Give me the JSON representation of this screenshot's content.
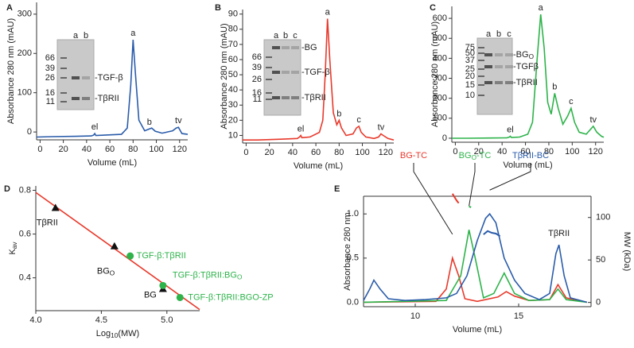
{
  "chart_data": [
    {
      "type": "line",
      "label": "A",
      "ylabel": "Absorbance 280 nm (mAU)",
      "xlabel": "Volume (mL)",
      "xlim": [
        -3,
        127
      ],
      "ylim": [
        -20,
        330
      ],
      "xticks": [
        0,
        20,
        40,
        60,
        80,
        100,
        120
      ],
      "yticks": [
        0,
        100,
        200,
        300
      ],
      "x": [
        -3,
        10,
        30,
        44,
        46,
        47,
        48,
        55,
        70,
        75,
        78,
        80,
        82,
        85,
        90,
        94,
        96,
        99,
        105,
        114,
        117,
        119,
        122,
        127
      ],
      "series": [
        {
          "color": "#2a5caa",
          "values": [
            -13,
            -12,
            -11,
            -10,
            -8,
            -4,
            -9,
            -8,
            -6,
            10,
            120,
            235,
            150,
            30,
            3,
            8,
            10,
            2,
            -3,
            3,
            10,
            12,
            -4,
            -6
          ]
        }
      ],
      "peak_labels": [
        {
          "text": "el",
          "x": 47
        },
        {
          "text": "a",
          "x": 80
        },
        {
          "text": "b",
          "x": 94
        },
        {
          "text": "tv",
          "x": 119
        }
      ],
      "gel": {
        "lanes": [
          "a",
          "b"
        ],
        "markers": [
          66,
          39,
          26,
          16,
          11
        ],
        "bands": [
          "-TGF-β",
          "-TβRII"
        ]
      }
    },
    {
      "type": "line",
      "label": "B",
      "ylabel": "Absorbance 280 nm (mAU)",
      "xlabel": "Volume (mL)",
      "xlim": [
        -3,
        127
      ],
      "ylim": [
        5,
        93
      ],
      "xticks": [
        0,
        20,
        40,
        60,
        80,
        100,
        120
      ],
      "yticks": [
        10,
        20,
        30,
        40,
        50,
        60,
        70,
        80,
        90
      ],
      "x": [
        -3,
        10,
        30,
        44,
        46,
        47,
        48,
        55,
        63,
        66,
        68,
        70,
        72,
        75,
        78,
        80,
        82,
        86,
        92,
        95,
        97,
        99,
        103,
        110,
        114,
        116,
        118,
        122,
        127
      ],
      "series": [
        {
          "color": "#e8392b",
          "values": [
            7,
            7,
            7.5,
            8,
            9,
            10,
            8.5,
            9,
            12,
            20,
            50,
            87,
            60,
            25,
            17,
            20,
            15,
            10,
            11,
            15,
            16,
            12,
            9,
            8,
            9,
            11,
            10,
            8,
            7
          ]
        }
      ],
      "peak_labels": [
        {
          "text": "el",
          "x": 47
        },
        {
          "text": "a",
          "x": 70
        },
        {
          "text": "b",
          "x": 80
        },
        {
          "text": "c",
          "x": 97
        },
        {
          "text": "tv",
          "x": 116
        }
      ],
      "gel": {
        "lanes": [
          "a",
          "b",
          "c"
        ],
        "markers": [
          66,
          39,
          26,
          16,
          11
        ],
        "bands": [
          "-BG",
          "-TGF-β",
          "-TβRII"
        ]
      }
    },
    {
      "type": "line",
      "label": "C",
      "ylabel": "Absorbance 280 nm (mAU)",
      "xlabel": "Volume (mL)",
      "xlim": [
        -3,
        127
      ],
      "ylim": [
        -20,
        660
      ],
      "xticks": [
        0,
        20,
        40,
        60,
        80,
        100,
        120
      ],
      "yticks": [
        0,
        100,
        200,
        300,
        400,
        500,
        600
      ],
      "x": [
        -3,
        10,
        30,
        44,
        46,
        47,
        48,
        55,
        62,
        66,
        70,
        73,
        76,
        79,
        82,
        85,
        88,
        92,
        96,
        99,
        102,
        106,
        112,
        115,
        118,
        121,
        125,
        127
      ],
      "series": [
        {
          "color": "#2db34a",
          "values": [
            0,
            0,
            1,
            2,
            5,
            10,
            4,
            6,
            20,
            80,
            400,
            620,
            450,
            180,
            120,
            225,
            150,
            70,
            110,
            150,
            80,
            30,
            20,
            40,
            60,
            30,
            10,
            5
          ]
        }
      ],
      "peak_labels": [
        {
          "text": "el",
          "x": 47
        },
        {
          "text": "a",
          "x": 73
        },
        {
          "text": "b",
          "x": 85
        },
        {
          "text": "c",
          "x": 99
        },
        {
          "text": "tv",
          "x": 118
        }
      ],
      "gel": {
        "lanes": [
          "a",
          "b",
          "c"
        ],
        "markers": [
          75,
          50,
          37,
          25,
          20,
          15,
          10
        ],
        "bands": [
          [
            {
              "t": "-BG"
            },
            {
              "sub": "O"
            }
          ],
          "-TGFβ",
          "-TβRII"
        ]
      }
    },
    {
      "type": "scatter",
      "label": "D",
      "ylabel": [
        {
          "t": "K"
        },
        {
          "sub": "av"
        }
      ],
      "xlabel": [
        {
          "t": "Log"
        },
        {
          "sub": "10"
        },
        {
          "t": "(MW)"
        }
      ],
      "xlim": [
        4.0,
        5.25
      ],
      "ylim": [
        0.25,
        0.82
      ],
      "xticks": [
        {
          "value": 4,
          "label": "4.0"
        },
        4.5,
        {
          "value": 5,
          "label": "5.0"
        }
      ],
      "yticks": [
        0.4,
        0.6,
        0.8
      ],
      "fit": {
        "color": "#e8392b",
        "x": [
          4.0,
          5.25
        ],
        "values": [
          0.79,
          0.255
        ]
      },
      "series": [
        {
          "marker": "triangle",
          "color": "#111111",
          "x": [
            4.15,
            4.6,
            4.97
          ],
          "values": [
            0.72,
            0.545,
            0.35
          ],
          "labels": [
            "TβRII",
            [
              {
                "t": "BG"
              },
              {
                "sub": "O"
              }
            ],
            "BG"
          ]
        },
        {
          "marker": "circle",
          "color": "#2db34a",
          "x": [
            4.72,
            4.97,
            5.1
          ],
          "values": [
            0.5,
            0.365,
            0.31
          ],
          "labels": [
            "TGF-β:TβRII",
            [
              {
                "t": "TGF-β:TβRII:BG"
              },
              {
                "sub": "O"
              }
            ],
            "TGF-β:TβRII:BGO-ZP"
          ]
        }
      ]
    },
    {
      "type": "line",
      "label": "E",
      "ylabel": "Absorbance 280  nm",
      "y2label": "MW (kDa)",
      "xlabel": "Volume (mL)",
      "xlim": [
        7.5,
        18.5
      ],
      "ylim": [
        -0.05,
        1.2
      ],
      "y2lim": [
        -5,
        125
      ],
      "xticks": [
        10,
        15
      ],
      "yticks": [
        {
          "value": 0,
          "label": "0.0"
        },
        0.5,
        {
          "value": 1,
          "label": "1.0"
        }
      ],
      "y2ticks": [
        0,
        50,
        100
      ],
      "series": [
        {
          "name": "BG-TC",
          "color": "#e8392b",
          "x": [
            7.5,
            11,
            11.5,
            11.8,
            12.1,
            12.4,
            13,
            14,
            14.4,
            14.8,
            15.5,
            16.5,
            16.9,
            17.3,
            18.3
          ],
          "values": [
            0,
            0.01,
            0.15,
            0.5,
            0.3,
            0.04,
            0.01,
            0.06,
            0.12,
            0.07,
            0.02,
            0.03,
            0.2,
            0.05,
            0
          ]
        },
        {
          "name": [
            {
              "t": "BG"
            },
            {
              "sub": "O"
            },
            {
              "t": "-TC"
            }
          ],
          "color": "#2db34a",
          "x": [
            7.5,
            11.5,
            12.2,
            12.6,
            12.9,
            13.3,
            13.8,
            14.3,
            14.8,
            15.5,
            16.5,
            16.9,
            17.3,
            18.3
          ],
          "values": [
            0,
            0.02,
            0.3,
            0.82,
            0.5,
            0.05,
            0.1,
            0.33,
            0.1,
            0.02,
            0.03,
            0.15,
            0.03,
            0
          ]
        },
        {
          "name": "TβRII-BC",
          "color": "#2a5caa",
          "x": [
            7.5,
            7.8,
            8.0,
            8.3,
            8.7,
            9.5,
            10.5,
            11,
            11.5,
            12,
            12.5,
            13,
            13.4,
            13.6,
            13.9,
            14.3,
            14.8,
            15.3,
            16,
            16.5,
            16.8,
            16.95,
            17.2,
            17.5,
            18.3
          ],
          "values": [
            0.02,
            0.15,
            0.25,
            0.15,
            0.04,
            0.02,
            0.03,
            0.04,
            0.05,
            0.1,
            0.3,
            0.7,
            0.95,
            1.0,
            0.9,
            0.5,
            0.25,
            0.1,
            0.03,
            0.1,
            0.55,
            0.65,
            0.3,
            0.05,
            0
          ]
        },
        {
          "axis": "y2",
          "color": "#e8392b",
          "x": [
            11.8,
            11.9,
            12.0,
            12.1
          ],
          "values": [
            128,
            124,
            120,
            117
          ]
        },
        {
          "axis": "y2",
          "color": "#2db34a",
          "x": [
            12.6,
            12.7
          ],
          "values": [
            113,
            112
          ]
        },
        {
          "axis": "y2",
          "color": "#2a5caa",
          "x": [
            13.3,
            13.5,
            13.7,
            13.9,
            14.1
          ],
          "values": [
            80,
            84,
            82,
            81,
            78
          ]
        }
      ],
      "peak_labels": [
        {
          "text": "TβRII",
          "x": 16.95
        }
      ]
    }
  ]
}
